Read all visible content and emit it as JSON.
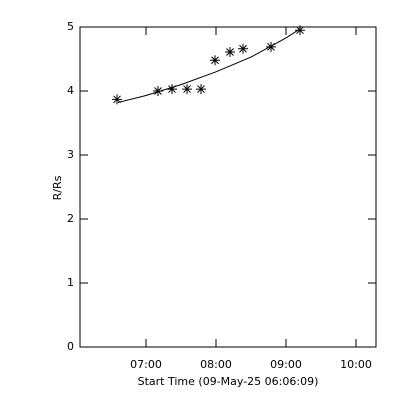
{
  "chart_data": {
    "type": "scatter",
    "xlabel": "Start Time (09-May-25 06:06:09)",
    "ylabel": "R/Rs",
    "x": [
      6.586,
      7.171,
      7.371,
      7.586,
      7.786,
      7.986,
      8.2,
      8.386,
      8.786,
      9.2
    ],
    "values": [
      3.87,
      4.0,
      4.03,
      4.03,
      4.03,
      4.48,
      4.61,
      4.66,
      4.69,
      4.95
    ],
    "color": "#000000",
    "fit": {
      "x": [
        6.6,
        7.0,
        7.5,
        8.0,
        8.5,
        9.0,
        9.2
      ],
      "values": [
        3.82,
        3.93,
        4.1,
        4.3,
        4.53,
        4.83,
        4.97
      ]
    },
    "xlim": [
      6.057,
      10.286
    ],
    "xticks": [
      {
        "value": 7,
        "label": "07:00"
      },
      {
        "value": 8,
        "label": "08:00"
      },
      {
        "value": 9,
        "label": "09:00"
      },
      {
        "value": 10,
        "label": "10:00"
      }
    ],
    "ylim": [
      0,
      5
    ],
    "yticks": [
      0,
      1,
      2,
      3,
      4,
      5
    ]
  }
}
